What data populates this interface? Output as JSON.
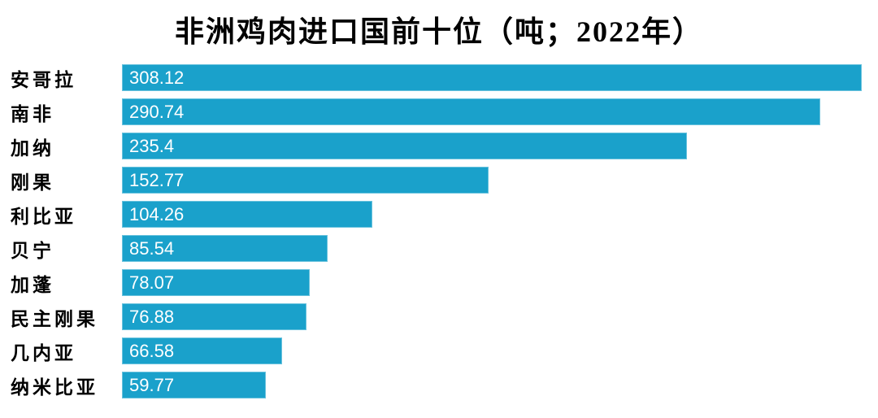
{
  "chart_data": {
    "type": "bar",
    "orientation": "horizontal",
    "title": "非洲鸡肉进口国前十位（吨；2022年）",
    "unit": "吨",
    "year": "2022",
    "categories": [
      "安哥拉",
      "南非",
      "加纳",
      "刚果",
      "利比亚",
      "贝宁",
      "加蓬",
      "民主刚果",
      "几内亚",
      "纳米比亚"
    ],
    "values": [
      308.12,
      290.74,
      235.4,
      152.77,
      104.26,
      85.54,
      78.07,
      76.88,
      66.58,
      59.77
    ],
    "value_labels": [
      "308.12",
      "290.74",
      "235.4",
      "152.77",
      "104.26",
      "85.54",
      "78.07",
      "76.88",
      "66.58",
      "59.77"
    ],
    "xlim": [
      0,
      308.12
    ],
    "grid": false,
    "legend_position": "none",
    "bar_color": "#1AA1CB",
    "value_label_color": "#FFFFFF",
    "category_label_color": "#000000",
    "background_color": "#FFFFFF"
  }
}
